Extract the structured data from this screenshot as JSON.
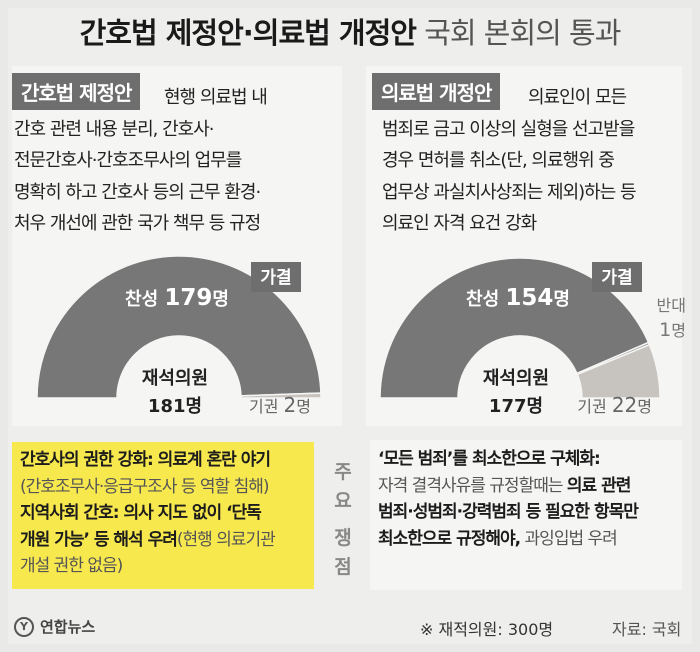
{
  "title": {
    "bold": "간호법 제정안·의료법 개정안",
    "light": "국회 본회의 통과"
  },
  "left_panel": {
    "tag": "간호법 제정안",
    "lines": [
      "현행 의료법 내",
      "간호 관련 내용 분리, 간호사·",
      "전문간호사·간호조무사의 업무를",
      "명확히 하고 간호사 등의 근무 환경·",
      "처우 개선에 관한 국가 책무 등 규정"
    ]
  },
  "right_panel": {
    "tag": "의료법 개정안",
    "lines": [
      "의료인이 모든",
      "범죄로 금고 이상의 실형을 선고받을",
      "경우 면허를 취소(단, 의료행위 중",
      "업무상 과실치사상죄는 제외)하는 등",
      "의료인 자격 요건 강화"
    ]
  },
  "chart_data": [
    {
      "type": "pie",
      "subtype": "semicircle",
      "result": "가결",
      "center_label": "재석의원",
      "total_label": "181명",
      "total": 181,
      "slices": [
        {
          "name": "찬성",
          "value": 179,
          "label_name": "찬성",
          "label_value": "179",
          "label_unit": "명",
          "color": "#777777"
        },
        {
          "name": "기권",
          "value": 2,
          "label_name": "기권",
          "label_value": "2",
          "label_unit": "명",
          "color": "#c7c3bf"
        }
      ]
    },
    {
      "type": "pie",
      "subtype": "semicircle",
      "result": "가결",
      "center_label": "재석의원",
      "total_label": "177명",
      "total": 177,
      "slices": [
        {
          "name": "찬성",
          "value": 154,
          "label_name": "찬성",
          "label_value": "154",
          "label_unit": "명",
          "color": "#777777"
        },
        {
          "name": "반대",
          "value": 1,
          "label_name": "반대",
          "label_value": "1",
          "label_unit": "명",
          "color": "#9a9a9a"
        },
        {
          "name": "기권",
          "value": 22,
          "label_name": "기권",
          "label_value": "22",
          "label_unit": "명",
          "color": "#c7c3bf"
        }
      ]
    }
  ],
  "issues": {
    "center_label": [
      "주",
      "요",
      "쟁",
      "점"
    ],
    "left": {
      "l1": "간호사의 권한 강화: 의료계 혼란 야기",
      "l2": "(간호조무사·응급구조사 등 역할 침해)",
      "l3": "지역사회 간호: 의사 지도 없이 ‘단독",
      "l4_bold": "개원 가능’ 등 해석 우려",
      "l4_rest": "(현행 의료기관",
      "l5": "개설 권한 없음)"
    },
    "right": {
      "l1": "‘모든 범죄’를 최소한으로 구체화:",
      "l2_rest": "자격 결격사유를 규정할때는 ",
      "l2_bold": "의료 관련",
      "l3": "범죄·성범죄·강력범죄 등 필요한 항목만",
      "l4_bold": "최소한으로 규정해야,",
      "l4_rest": " 과잉입법 우려"
    }
  },
  "footer": {
    "logo": "연합뉴스",
    "note": "※ 재적의원: 300명",
    "source": "자료: 국회"
  }
}
